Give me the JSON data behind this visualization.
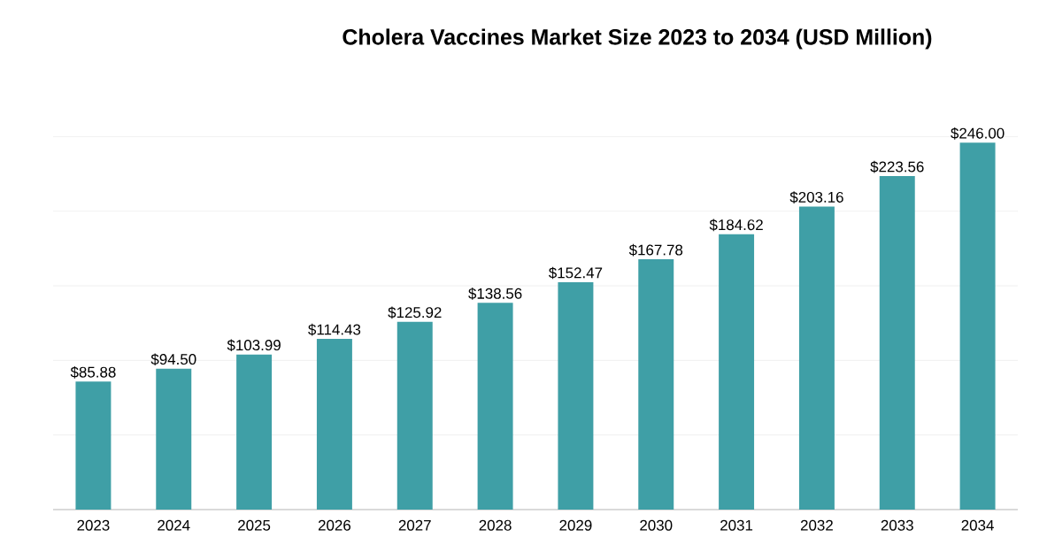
{
  "chart_data": {
    "type": "bar",
    "title": "Cholera Vaccines Market Size 2023 to 2034 (USD Million)",
    "categories": [
      "2023",
      "2024",
      "2025",
      "2026",
      "2027",
      "2028",
      "2029",
      "2030",
      "2031",
      "2032",
      "2033",
      "2034"
    ],
    "values": [
      85.88,
      94.5,
      103.99,
      114.43,
      125.92,
      138.56,
      152.47,
      167.78,
      184.62,
      203.16,
      223.56,
      246.0
    ],
    "value_labels": [
      "$85.88",
      "$94.50",
      "$103.99",
      "$114.43",
      "$125.92",
      "$138.56",
      "$152.47",
      "$167.78",
      "$184.62",
      "$203.16",
      "$223.56",
      "$246.00"
    ],
    "color": "#3f9fa6",
    "tick_labels": "x",
    "grid": "y"
  }
}
